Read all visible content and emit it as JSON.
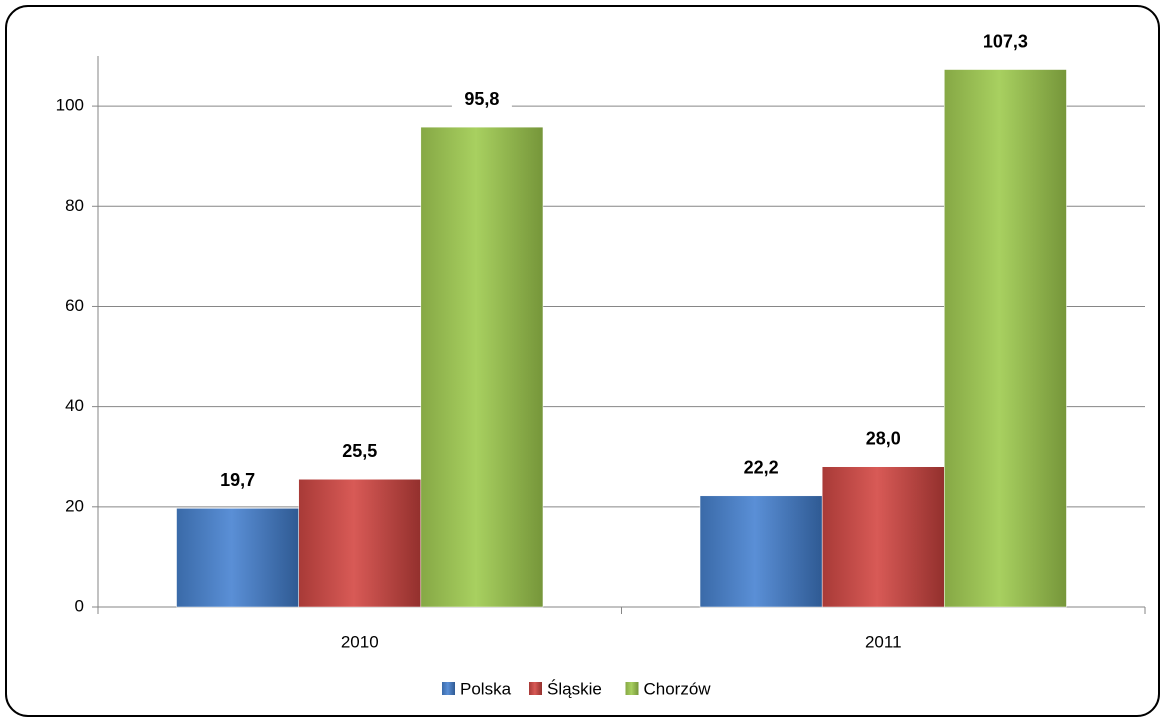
{
  "chart_data": {
    "type": "bar",
    "categories": [
      "2010",
      "2011"
    ],
    "series": [
      {
        "name": "Polska",
        "color": "#4f81bd",
        "values": [
          19.7,
          22.2
        ],
        "value_labels": [
          "19,7",
          "22,2"
        ]
      },
      {
        "name": "Śląskie",
        "color": "#c0504d",
        "values": [
          25.5,
          28.0
        ],
        "value_labels": [
          "25,5",
          "28,0"
        ]
      },
      {
        "name": "Chorzów",
        "color": "#9bbb59",
        "values": [
          95.8,
          107.3
        ],
        "value_labels": [
          "95,8",
          "107,3"
        ]
      }
    ],
    "ylim": [
      0,
      110
    ],
    "yticks": [
      0,
      20,
      40,
      60,
      80,
      100
    ],
    "grid": true,
    "legend": "bottom"
  }
}
